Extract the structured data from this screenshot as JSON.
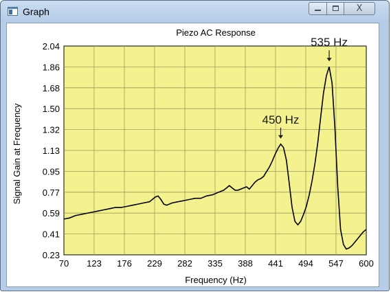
{
  "window": {
    "title": "Graph",
    "app_icon": "graph-window-icon",
    "controls": {
      "minimize_icon": "minimize-icon",
      "maximize_icon": "maximize-icon",
      "close_icon": "close-icon",
      "close_glyph": "X"
    }
  },
  "chart_data": {
    "type": "line",
    "title": "Piezo AC Response",
    "xlabel": "Frequency (Hz)",
    "ylabel": "Signal Gain at Frequency",
    "xlim": [
      70,
      600
    ],
    "ylim": [
      0.23,
      2.04
    ],
    "x_ticks": [
      "70",
      "123",
      "176",
      "229",
      "282",
      "335",
      "388",
      "441",
      "494",
      "547",
      "600"
    ],
    "y_ticks": [
      "0.23",
      "0.41",
      "0.59",
      "0.77",
      "0.95",
      "1.13",
      "1.32",
      "1.50",
      "1.68",
      "1.86",
      "2.04"
    ],
    "grid": true,
    "plot_background": "#f3f28f",
    "line_color": "#000000",
    "annotations": [
      {
        "text": "450 Hz",
        "x": 450,
        "y": 1.19
      },
      {
        "text": "535 Hz",
        "x": 535,
        "y": 1.86
      }
    ],
    "series": [
      {
        "x": [
          70,
          80,
          90,
          100,
          110,
          120,
          130,
          140,
          150,
          160,
          170,
          180,
          190,
          200,
          210,
          220,
          225,
          230,
          235,
          240,
          245,
          250,
          260,
          270,
          280,
          290,
          300,
          310,
          320,
          330,
          340,
          350,
          355,
          360,
          365,
          370,
          375,
          380,
          385,
          390,
          395,
          400,
          405,
          410,
          415,
          420,
          425,
          430,
          435,
          440,
          445,
          450,
          455,
          460,
          465,
          470,
          475,
          480,
          485,
          490,
          495,
          500,
          505,
          510,
          515,
          520,
          525,
          530,
          535,
          540,
          545,
          550,
          555,
          560,
          565,
          570,
          575,
          580,
          585,
          590,
          595,
          600
        ],
        "y": [
          0.54,
          0.55,
          0.57,
          0.58,
          0.59,
          0.6,
          0.61,
          0.62,
          0.63,
          0.64,
          0.64,
          0.65,
          0.66,
          0.67,
          0.68,
          0.69,
          0.71,
          0.73,
          0.74,
          0.71,
          0.67,
          0.66,
          0.68,
          0.69,
          0.7,
          0.71,
          0.72,
          0.72,
          0.74,
          0.75,
          0.77,
          0.79,
          0.81,
          0.83,
          0.81,
          0.79,
          0.79,
          0.8,
          0.81,
          0.82,
          0.8,
          0.83,
          0.86,
          0.88,
          0.89,
          0.91,
          0.95,
          0.99,
          1.04,
          1.1,
          1.15,
          1.19,
          1.16,
          1.05,
          0.85,
          0.64,
          0.52,
          0.49,
          0.52,
          0.58,
          0.65,
          0.75,
          0.87,
          1.02,
          1.2,
          1.42,
          1.63,
          1.78,
          1.86,
          1.72,
          1.34,
          0.82,
          0.45,
          0.32,
          0.28,
          0.29,
          0.31,
          0.34,
          0.37,
          0.4,
          0.43,
          0.45
        ]
      }
    ]
  }
}
